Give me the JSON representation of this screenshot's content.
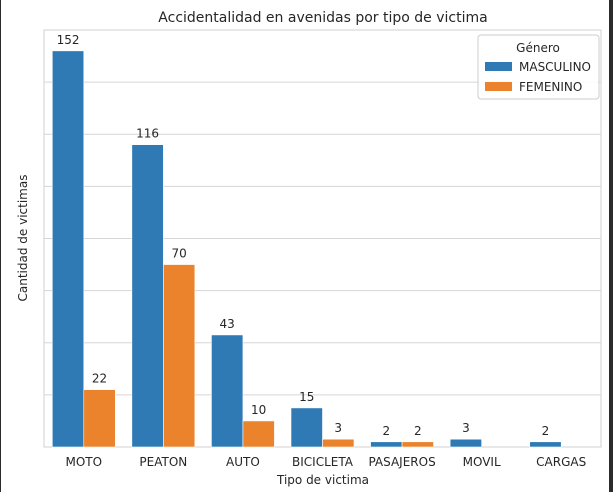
{
  "chart_data": {
    "type": "bar",
    "title": "Accidentalidad en avenidas por tipo de victima",
    "xlabel": "Tipo de victima",
    "ylabel": "Cantidad de victimas",
    "categories": [
      "MOTO",
      "PEATON",
      "AUTO",
      "BICICLETA",
      "PASAJEROS",
      "MOVIL",
      "CARGAS"
    ],
    "series": [
      {
        "name": "MASCULINO",
        "color": "#2f7ab5",
        "values": [
          152,
          116,
          43,
          15,
          2,
          3,
          2
        ]
      },
      {
        "name": "FEMENINO",
        "color": "#ea832b",
        "values": [
          22,
          70,
          10,
          3,
          2,
          null,
          null
        ]
      }
    ],
    "ylim": [
      0,
      160
    ],
    "grid": true,
    "y_tick_labels_shown": false,
    "legend": {
      "title": "Género",
      "placement": "top-right"
    }
  }
}
